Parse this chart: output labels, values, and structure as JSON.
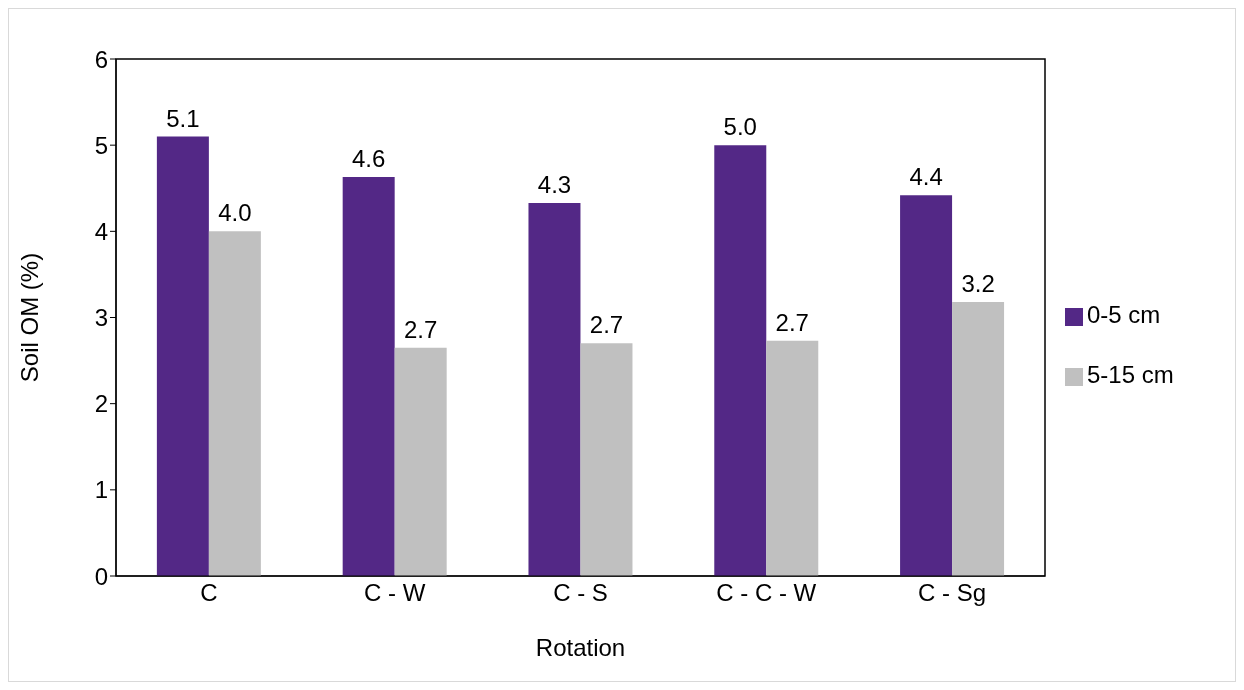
{
  "chart_data": {
    "type": "bar",
    "xlabel": "Rotation",
    "ylabel": "Soil OM (%)",
    "categories": [
      "C",
      "C - W",
      "C - S",
      "C - C - W",
      "C - Sg"
    ],
    "series": [
      {
        "name": "0-5 cm",
        "color": "#532886",
        "values": [
          5.1,
          4.63,
          4.33,
          5.0,
          4.42
        ],
        "value_labels": [
          "5.1",
          "4.6",
          "4.3",
          "5.0",
          "4.4"
        ]
      },
      {
        "name": "5-15 cm",
        "color": "#c0c0c0",
        "values": [
          4.0,
          2.65,
          2.7,
          2.73,
          3.18
        ],
        "value_labels": [
          "4.0",
          "2.7",
          "2.7",
          "2.7",
          "3.2"
        ]
      }
    ],
    "ylim": [
      0,
      6
    ],
    "yticks": [
      0,
      1,
      2,
      3,
      4,
      5,
      6
    ],
    "legend": "right"
  }
}
